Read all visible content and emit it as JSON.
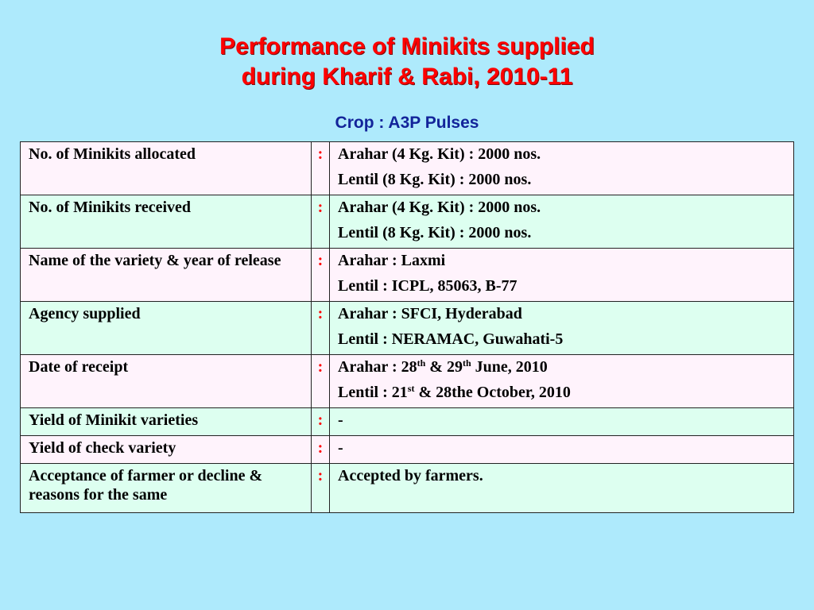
{
  "slide": {
    "title_line1": "Performance of Minikits supplied",
    "title_line2": "during Kharif & Rabi, 2010-11",
    "subtitle": "Crop : A3P Pulses",
    "separator": ":"
  },
  "rows": [
    {
      "label": "No. of Minikits allocated",
      "v1": "Arahar (4 Kg. Kit) : 2000 nos.",
      "v2": "Lentil (8 Kg. Kit) : 2000 nos."
    },
    {
      "label": "No. of Minikits received",
      "v1": "Arahar (4 Kg. Kit) : 2000 nos.",
      "v2": "Lentil (8 Kg. Kit) : 2000 nos."
    },
    {
      "label": "Name of the variety & year of release",
      "v1": "Arahar : Laxmi",
      "v2": "Lentil : ICPL, 85063, B-77"
    },
    {
      "label": "Agency supplied",
      "v1": "Arahar : SFCI, Hyderabad",
      "v2": "Lentil : NERAMAC, Guwahati-5"
    },
    {
      "label": "Date of receipt",
      "v1_a": "Arahar : 28",
      "v1_sup1": "th",
      "v1_b": " & 29",
      "v1_sup2": "th",
      "v1_c": " June, 2010",
      "v2_a": "Lentil : 21",
      "v2_sup": "st",
      "v2_b": " & 28the October, 2010"
    },
    {
      "label": "Yield of Minikit varieties",
      "v1": "-"
    },
    {
      "label": "Yield of check variety",
      "v1": "-"
    },
    {
      "label": "Acceptance of farmer or decline & reasons for the same",
      "v1": "Accepted by farmers."
    }
  ]
}
